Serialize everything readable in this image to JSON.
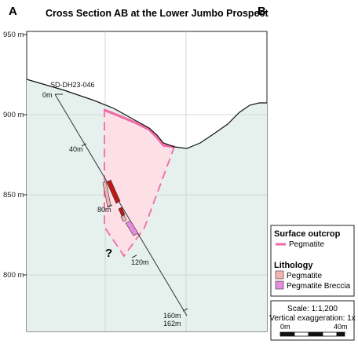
{
  "title": "Cross Section AB at the Lower Jumbo Prospect",
  "corners": {
    "left": "A",
    "right": "B"
  },
  "elevation_labels": [
    "950 m",
    "900 m",
    "850 m",
    "800 m"
  ],
  "drillhole": {
    "name": "SD-DH23-046",
    "depth_labels": [
      "0m",
      "40m",
      "80m",
      "120m",
      "160m",
      "162m"
    ]
  },
  "unknown_marker": "?",
  "legend": {
    "surface_title": "Surface outcrop",
    "surface_items": [
      {
        "label": "Pegmatite",
        "color": "#f06aa6"
      }
    ],
    "lithology_title": "Lithology",
    "lithology_items": [
      {
        "label": "Pegmatite",
        "color": "#f4b3b3"
      },
      {
        "label": "Pegmatite Breccia",
        "color": "#e58be0"
      }
    ]
  },
  "scale": {
    "ratio": "Scale: 1:1,200",
    "exaggeration": "Vertical exaggeration: 1x",
    "ticks": [
      "0m",
      "40m"
    ]
  },
  "colors": {
    "ground_fill": "#e6f1ee",
    "pegmatite_body": "#fde0e6",
    "pegmatite_outline": "#f06aa6",
    "intercept_red": "#c01818",
    "intercept_pegmatite": "#f4b3b3",
    "intercept_breccia": "#e58be0"
  }
}
